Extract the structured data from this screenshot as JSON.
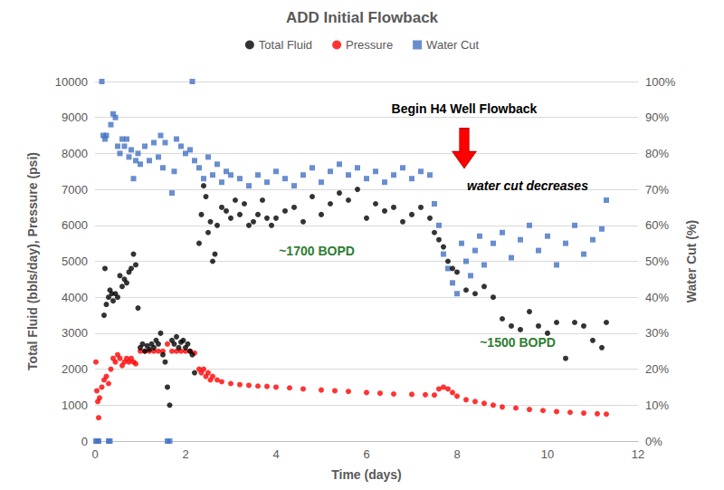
{
  "chart_data": {
    "type": "scatter",
    "title": "ADD Initial Flowback",
    "x_label": "Time (days)",
    "y_label": "Total Fluid (bbls/day), Pressure (psi)",
    "y2_label": "Water Cut (%)",
    "xlim": [
      0,
      12
    ],
    "xticks": [
      0,
      2,
      4,
      6,
      8,
      10,
      12
    ],
    "ylim": [
      0,
      10000
    ],
    "yticks": [
      0,
      1000,
      2000,
      3000,
      4000,
      5000,
      6000,
      7000,
      8000,
      9000,
      10000
    ],
    "y2lim": [
      0,
      100
    ],
    "y2ticks": [
      {
        "value": 0,
        "label": "0%"
      },
      {
        "value": 10,
        "label": "10%"
      },
      {
        "value": 20,
        "label": "20%"
      },
      {
        "value": 30,
        "label": "30%"
      },
      {
        "value": 40,
        "label": "40%"
      },
      {
        "value": 50,
        "label": "50%"
      },
      {
        "value": 60,
        "label": "60%"
      },
      {
        "value": 70,
        "label": "70%"
      },
      {
        "value": 80,
        "label": "80%"
      },
      {
        "value": 90,
        "label": "90%"
      },
      {
        "value": 100,
        "label": "100%"
      }
    ],
    "grid": true,
    "legend": "top",
    "series": [
      {
        "name": "Total Fluid",
        "color": "#000000",
        "marker": "circle",
        "x": [
          0.2,
          0.22,
          0.25,
          0.3,
          0.33,
          0.37,
          0.4,
          0.45,
          0.5,
          0.55,
          0.6,
          0.65,
          0.7,
          0.75,
          0.8,
          0.85,
          0.9,
          0.95,
          1.0,
          1.05,
          1.1,
          1.15,
          1.2,
          1.25,
          1.3,
          1.35,
          1.4,
          1.45,
          1.5,
          1.55,
          1.6,
          1.65,
          1.7,
          1.75,
          1.8,
          1.85,
          1.9,
          1.95,
          2.0,
          2.05,
          2.1,
          2.15,
          2.2,
          2.3,
          2.35,
          2.4,
          2.45,
          2.5,
          2.55,
          2.6,
          2.65,
          2.7,
          2.8,
          2.9,
          3.0,
          3.1,
          3.2,
          3.3,
          3.4,
          3.5,
          3.6,
          3.7,
          3.8,
          3.9,
          4.0,
          4.2,
          4.4,
          4.6,
          4.8,
          5.0,
          5.2,
          5.4,
          5.6,
          5.8,
          6.0,
          6.2,
          6.4,
          6.6,
          6.8,
          7.0,
          7.2,
          7.4,
          7.5,
          7.6,
          7.7,
          7.8,
          7.9,
          8.0,
          8.2,
          8.4,
          8.6,
          8.8,
          9.0,
          9.2,
          9.4,
          9.6,
          9.8,
          10.0,
          10.2,
          10.4,
          10.6,
          10.8,
          11.0,
          11.2,
          11.3
        ],
        "values": [
          3500,
          4800,
          3800,
          4000,
          4200,
          4100,
          3900,
          4100,
          4000,
          4600,
          4300,
          4500,
          4400,
          4700,
          4800,
          5200,
          4900,
          3700,
          2600,
          2700,
          2500,
          2650,
          2550,
          2700,
          2600,
          2800,
          2700,
          3000,
          2400,
          2200,
          1500,
          1000,
          2800,
          2700,
          2900,
          2600,
          2750,
          2800,
          2600,
          2700,
          2500,
          2400,
          1900,
          5500,
          6300,
          7100,
          6800,
          5800,
          6100,
          5000,
          5200,
          6000,
          6500,
          6400,
          6200,
          6700,
          6300,
          6600,
          6000,
          6100,
          6300,
          6700,
          6200,
          6000,
          6200,
          6400,
          6500,
          6100,
          6800,
          6300,
          6600,
          6900,
          6700,
          7000,
          6200,
          6600,
          6400,
          6500,
          6100,
          6300,
          6500,
          6200,
          5800,
          5600,
          5400,
          5000,
          4800,
          4700,
          4200,
          4100,
          4300,
          4000,
          3400,
          3200,
          3100,
          3600,
          3200,
          3000,
          3300,
          2300,
          3300,
          3200,
          2800,
          2600,
          3300
        ]
      },
      {
        "name": "Pressure",
        "color": "#ff0000",
        "marker": "circle",
        "x": [
          0.02,
          0.04,
          0.06,
          0.08,
          0.1,
          0.15,
          0.2,
          0.25,
          0.3,
          0.35,
          0.4,
          0.45,
          0.5,
          0.55,
          0.6,
          0.65,
          0.7,
          0.75,
          0.8,
          0.85,
          0.9,
          1.0,
          1.1,
          1.2,
          1.3,
          1.4,
          1.5,
          1.6,
          1.7,
          1.8,
          1.9,
          2.0,
          2.1,
          2.2,
          2.3,
          2.35,
          2.4,
          2.45,
          2.5,
          2.55,
          2.6,
          2.7,
          2.8,
          3.0,
          3.2,
          3.4,
          3.6,
          3.8,
          4.0,
          4.3,
          4.6,
          5.0,
          5.3,
          5.6,
          6.0,
          6.3,
          6.6,
          7.0,
          7.3,
          7.5,
          7.6,
          7.7,
          7.8,
          7.9,
          8.0,
          8.2,
          8.4,
          8.6,
          8.8,
          9.0,
          9.3,
          9.6,
          9.9,
          10.2,
          10.5,
          10.8,
          11.1,
          11.3
        ],
        "values": [
          2200,
          1400,
          1100,
          650,
          1200,
          1500,
          1700,
          1800,
          1600,
          2000,
          2300,
          2200,
          2400,
          2300,
          2100,
          2200,
          2300,
          2200,
          2300,
          2200,
          2150,
          2500,
          2500,
          2500,
          2500,
          2500,
          2500,
          2700,
          2500,
          2500,
          2500,
          2500,
          2500,
          2450,
          2000,
          1900,
          2000,
          1800,
          1900,
          1700,
          1800,
          1700,
          1650,
          1600,
          1570,
          1550,
          1530,
          1520,
          1500,
          1480,
          1450,
          1420,
          1400,
          1380,
          1350,
          1330,
          1310,
          1300,
          1290,
          1280,
          1450,
          1500,
          1450,
          1350,
          1250,
          1150,
          1100,
          1050,
          1000,
          950,
          920,
          880,
          850,
          820,
          800,
          780,
          760,
          750
        ]
      },
      {
        "name": "Water Cut",
        "color": "#4472c4",
        "marker": "square",
        "axis": "y2",
        "x": [
          0.02,
          0.05,
          0.08,
          0.15,
          0.18,
          0.22,
          0.25,
          0.3,
          0.33,
          0.35,
          0.4,
          0.45,
          0.5,
          0.55,
          0.6,
          0.65,
          0.7,
          0.75,
          0.8,
          0.85,
          0.9,
          0.95,
          1.0,
          1.1,
          1.2,
          1.3,
          1.4,
          1.45,
          1.5,
          1.55,
          1.6,
          1.65,
          1.7,
          1.75,
          1.8,
          1.9,
          2.0,
          2.1,
          2.15,
          2.2,
          2.3,
          2.4,
          2.5,
          2.6,
          2.7,
          2.8,
          2.9,
          3.0,
          3.2,
          3.4,
          3.6,
          3.8,
          4.0,
          4.2,
          4.4,
          4.6,
          4.8,
          5.0,
          5.2,
          5.4,
          5.6,
          5.8,
          6.0,
          6.2,
          6.4,
          6.6,
          6.8,
          7.0,
          7.2,
          7.4,
          7.5,
          7.6,
          7.7,
          7.8,
          7.9,
          8.0,
          8.1,
          8.2,
          8.3,
          8.4,
          8.5,
          8.6,
          8.8,
          9.0,
          9.2,
          9.4,
          9.6,
          9.8,
          10.0,
          10.2,
          10.4,
          10.6,
          10.8,
          11.0,
          11.2,
          11.3
        ],
        "values": [
          0,
          0,
          0,
          100,
          85,
          84,
          85,
          0,
          0,
          88,
          91,
          90,
          82,
          80,
          84,
          82,
          84,
          79,
          81,
          73,
          78,
          80,
          77,
          82,
          78,
          83,
          79,
          85,
          76,
          83,
          0,
          0,
          69,
          75,
          84,
          82,
          80,
          81,
          100,
          78,
          76,
          73,
          79,
          74,
          77,
          72,
          75,
          74,
          73,
          71,
          74,
          72,
          75,
          73,
          71,
          74,
          76,
          72,
          75,
          77,
          74,
          76,
          73,
          75,
          72,
          74,
          76,
          73,
          75,
          74,
          66,
          60,
          52,
          48,
          44,
          41,
          55,
          50,
          46,
          53,
          57,
          49,
          55,
          58,
          51,
          56,
          60,
          53,
          57,
          49,
          55,
          60,
          52,
          56,
          59,
          67
        ]
      }
    ],
    "annotations": [
      {
        "text": "Begin H4 Well Flowback",
        "x": 8.16,
        "y": 9250,
        "color": "#000000"
      },
      {
        "text": "water cut decreases",
        "x": 9.56,
        "y": 7100,
        "color": "#000000"
      },
      {
        "text": "~1700 BOPD",
        "x": 4.9,
        "y": 5300,
        "color": "#2e7d32"
      },
      {
        "text": "~1500 BOPD",
        "x": 9.34,
        "y": 2750,
        "color": "#2e7d32"
      }
    ]
  }
}
